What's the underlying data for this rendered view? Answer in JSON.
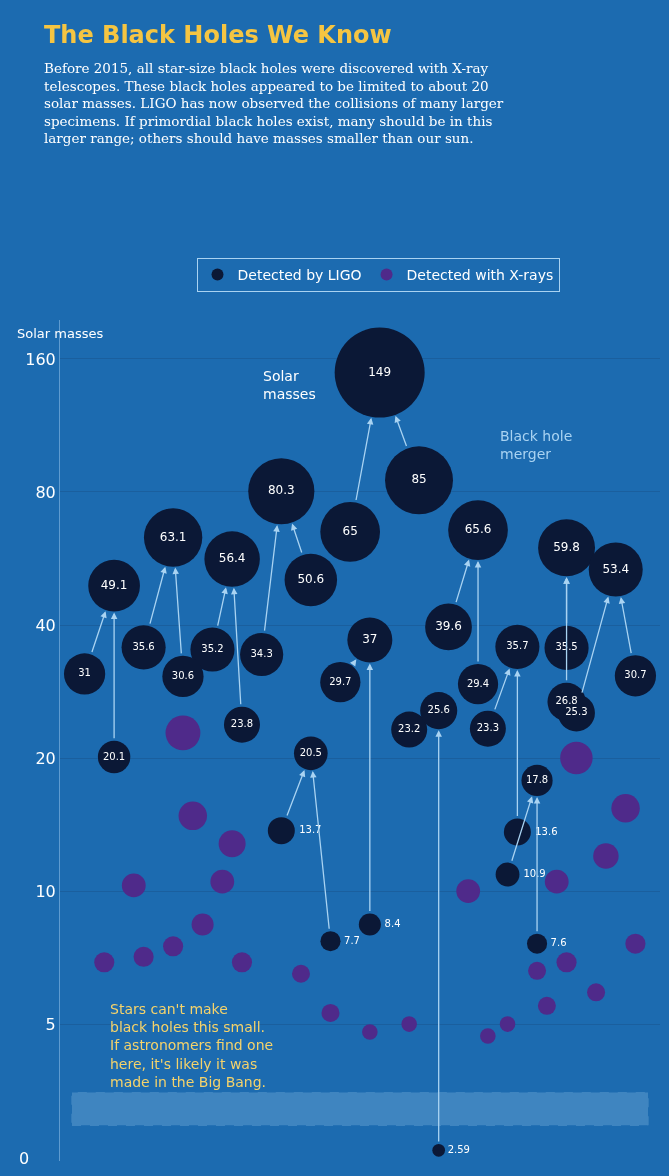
{
  "chart_data": {
    "type": "bubble",
    "title": "The Black Holes We Know",
    "subtitle": "Before 2015, all star-size black holes were discovered with X-ray\ntelescopes. These black holes appeared to be limited to about 20\nsolar masses. LIGO has now observed the collisions of many larger\nspecimens. If primordial black holes exist, many should be in this\nlarger range; others should have masses smaller than our sun.",
    "ylabel": "Solar masses",
    "log": "y",
    "ylim": [
      2.45,
      196
    ],
    "yticks": [
      5,
      10,
      20,
      40,
      80,
      160
    ],
    "categories": [
      null,
      null,
      null,
      null,
      null,
      null,
      null,
      null,
      null,
      null,
      null,
      null,
      null,
      null,
      null,
      null,
      null,
      null,
      null,
      null,
      null,
      null,
      null,
      null,
      null,
      null,
      null,
      null,
      null,
      null,
      null,
      null,
      null,
      null,
      null,
      null,
      null,
      null,
      null,
      null,
      null,
      null,
      null,
      null,
      null,
      null,
      null,
      null,
      null,
      null,
      null,
      null,
      null,
      null,
      null,
      null,
      null,
      null,
      null,
      null,
      null
    ],
    "tick_labels": "y",
    "grid": "y",
    "legend": "top",
    "series": [
      {
        "name": "Detected by LIGO",
        "color": "#0b1836",
        "values": [
          null,
          null,
          31,
          null,
          null,
          null,
          null,
          null,
          35.6,
          null,
          null,
          null,
          null,
          null,
          null,
          35.2,
          null,
          null,
          null,
          null,
          34.3,
          null,
          13.7,
          null,
          null,
          null,
          null,
          null,
          29.7,
          65,
          null,
          null,
          null,
          null,
          null,
          23.2,
          null,
          null,
          null,
          39.6,
          null,
          null,
          null,
          23.3,
          null,
          10.9,
          null,
          null,
          null,
          null,
          null,
          26.8,
          25.3,
          null,
          null,
          null,
          null,
          null,
          null,
          null,
          null
        ],
        "sizes": [
          null,
          null,
          0.21,
          null,
          null,
          null,
          null,
          null,
          0.24,
          null,
          null,
          null,
          null,
          null,
          null,
          0.24,
          null,
          null,
          null,
          null,
          0.23,
          null,
          0.09,
          null,
          null,
          null,
          null,
          null,
          0.2,
          0.44,
          null,
          null,
          null,
          null,
          null,
          0.16,
          null,
          null,
          null,
          0.27,
          null,
          null,
          null,
          0.16,
          null,
          0.07,
          null,
          null,
          null,
          null,
          null,
          0.18,
          0.17,
          null,
          null,
          null,
          null,
          null,
          null,
          null,
          null
        ],
        "value_labels": [
          null,
          null,
          "31",
          null,
          null,
          null,
          null,
          null,
          "35.6",
          null,
          null,
          null,
          null,
          null,
          null,
          "35.2",
          null,
          null,
          null,
          null,
          "34.3",
          null,
          "13.7",
          null,
          null,
          null,
          null,
          null,
          "29.7",
          "65",
          null,
          null,
          null,
          null,
          null,
          "23.2",
          null,
          null,
          null,
          "39.6",
          null,
          null,
          null,
          "23.3",
          null,
          "10.9",
          null,
          null,
          null,
          null,
          null,
          "26.8",
          "25.3",
          null,
          null,
          null,
          null,
          null,
          null,
          null,
          null
        ]
      },
      {
        "color": "#0b1836",
        "values": [
          null,
          null,
          null,
          null,
          null,
          20.1,
          null,
          null,
          null,
          null,
          null,
          null,
          30.6,
          null,
          null,
          null,
          null,
          null,
          23.8,
          null,
          null,
          null,
          null,
          null,
          null,
          50.6,
          null,
          7.7,
          null,
          null,
          null,
          8.4,
          null,
          null,
          null,
          null,
          85,
          null,
          2.59,
          null,
          null,
          null,
          29.4,
          null,
          null,
          null,
          13.6,
          null,
          7.6,
          null,
          null,
          35.5,
          null,
          null,
          null,
          null,
          null,
          null,
          30.7,
          null,
          null
        ],
        "sizes": [
          null,
          null,
          null,
          null,
          null,
          0.13,
          null,
          null,
          null,
          null,
          null,
          null,
          0.21,
          null,
          null,
          null,
          null,
          null,
          0.16,
          null,
          null,
          null,
          null,
          null,
          null,
          0.34,
          null,
          0.05,
          null,
          null,
          null,
          0.06,
          null,
          null,
          null,
          null,
          0.57,
          null,
          0.02,
          null,
          null,
          null,
          0.2,
          null,
          null,
          null,
          0.09,
          null,
          0.05,
          null,
          null,
          0.24,
          null,
          null,
          null,
          null,
          null,
          null,
          0.21,
          null,
          null
        ],
        "value_labels": [
          null,
          null,
          null,
          null,
          null,
          "20.1",
          null,
          null,
          null,
          null,
          null,
          null,
          "30.6",
          null,
          null,
          null,
          null,
          null,
          "23.8",
          null,
          null,
          null,
          null,
          null,
          null,
          "50.6",
          null,
          "7.7",
          null,
          null,
          null,
          "8.4",
          null,
          null,
          null,
          null,
          "85",
          null,
          "2.59",
          null,
          null,
          null,
          "29.4",
          null,
          null,
          null,
          "13.6",
          null,
          "7.6",
          null,
          null,
          "35.5",
          null,
          null,
          null,
          null,
          null,
          null,
          "30.7",
          null,
          null
        ]
      },
      {
        "color": "#0b1836",
        "values": [
          null,
          null,
          null,
          null,
          null,
          49.1,
          null,
          null,
          null,
          null,
          null,
          63.1,
          null,
          null,
          null,
          null,
          null,
          56.4,
          null,
          null,
          null,
          null,
          80.3,
          null,
          null,
          20.5,
          null,
          null,
          null,
          null,
          null,
          37,
          149,
          null,
          null,
          null,
          null,
          null,
          25.6,
          null,
          null,
          null,
          65.6,
          null,
          null,
          null,
          35.7,
          null,
          17.8,
          null,
          null,
          59.8,
          null,
          null,
          null,
          null,
          53.4,
          null,
          null,
          null,
          null
        ],
        "sizes": [
          null,
          null,
          null,
          null,
          null,
          0.33,
          null,
          null,
          null,
          null,
          null,
          0.42,
          null,
          null,
          null,
          null,
          null,
          0.38,
          null,
          null,
          null,
          null,
          0.54,
          null,
          null,
          0.14,
          null,
          null,
          null,
          null,
          null,
          0.25,
          1,
          null,
          null,
          null,
          null,
          null,
          0.17,
          null,
          null,
          null,
          0.44,
          null,
          null,
          null,
          0.24,
          null,
          0.12,
          null,
          null,
          0.4,
          null,
          null,
          null,
          null,
          0.36,
          null,
          null,
          null,
          null
        ],
        "value_labels": [
          null,
          null,
          null,
          null,
          null,
          "49.1",
          null,
          null,
          null,
          null,
          null,
          "63.1",
          null,
          null,
          null,
          null,
          null,
          "56.4",
          null,
          null,
          null,
          null,
          "80.3",
          null,
          null,
          "20.5",
          null,
          null,
          null,
          null,
          null,
          "37",
          "149",
          null,
          null,
          null,
          null,
          null,
          "25.6",
          null,
          null,
          null,
          "65.6",
          null,
          null,
          null,
          "35.7",
          null,
          "17.8",
          null,
          null,
          "59.8",
          null,
          null,
          null,
          null,
          "53.4",
          null,
          null,
          null,
          null
        ]
      },
      {
        "name": "Detected with X-rays",
        "color": "#4f2a8a",
        "values": [
          null,
          null,
          null,
          null,
          6.9,
          null,
          null,
          10.3,
          7.1,
          null,
          null,
          7.5,
          22.8,
          14.8,
          8.4,
          null,
          10.5,
          12.8,
          6.9,
          null,
          null,
          null,
          null,
          null,
          6.5,
          null,
          null,
          5.3,
          null,
          null,
          null,
          4.8,
          null,
          null,
          null,
          5.0,
          null,
          null,
          null,
          null,
          null,
          10.0,
          null,
          4.7,
          null,
          5.0,
          null,
          null,
          6.6,
          5.5,
          10.5,
          6.9,
          20.0,
          null,
          5.9,
          12.0,
          null,
          15.4,
          7.6,
          null,
          null
        ],
        "sizes": [
          null,
          null,
          null,
          null,
          0.05,
          null,
          null,
          0.07,
          0.05,
          null,
          null,
          0.05,
          0.15,
          0.1,
          0.06,
          null,
          0.07,
          0.09,
          0.05,
          null,
          null,
          null,
          null,
          null,
          0.04,
          null,
          null,
          0.04,
          null,
          null,
          null,
          0.03,
          null,
          null,
          null,
          0.03,
          null,
          null,
          null,
          null,
          null,
          0.07,
          null,
          0.03,
          null,
          0.03,
          null,
          null,
          0.04,
          0.04,
          0.07,
          0.05,
          0.13,
          null,
          0.04,
          0.08,
          null,
          0.1,
          0.05,
          null,
          null
        ]
      }
    ],
    "bands": [
      {
        "axis": "y",
        "from": 2.95,
        "to": 3.5,
        "color": "#a9d3f2"
      }
    ],
    "annotations": [
      "Solar\nmasses",
      "Black hole\nmerger",
      "Stars can't make\nblack holes this small.\nIf astronomers find one\nhere, it's likely it was\nmade in the Big Bang.",
      "0"
    ]
  }
}
